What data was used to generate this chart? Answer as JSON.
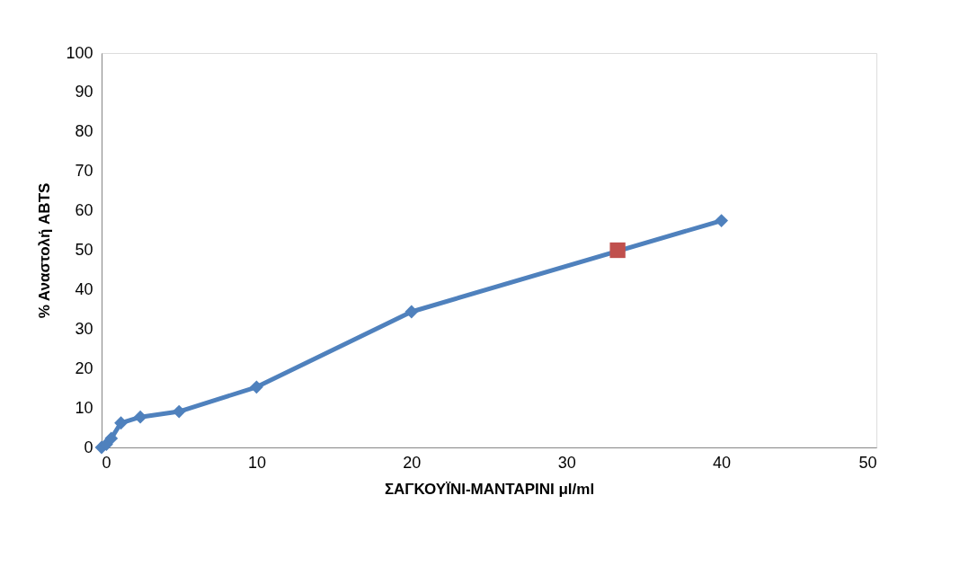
{
  "chart_data": {
    "type": "line",
    "xlabel": "ΣΑΓΚΟΥΪΝΙ-ΜΑΝΤΑΡΙΝΙ μl/ml",
    "ylabel": "% Αναστολή ABTS",
    "series": [
      {
        "color": "#4f81bd",
        "marker": "diamond",
        "x": [
          0,
          0.3125,
          0.625,
          1.25,
          2.5,
          5,
          10,
          20,
          40
        ],
        "values": [
          0,
          0.8,
          2.3,
          6.2,
          7.7,
          9.1,
          15.3,
          34.4,
          57.5
        ]
      },
      {
        "type": "scatter",
        "color": "#c0504d",
        "marker": "square",
        "x": [
          33.3
        ],
        "values": [
          50
        ]
      }
    ],
    "xlim": [
      0,
      50
    ],
    "xticks": [
      0,
      10,
      20,
      30,
      40,
      50
    ],
    "ylim": [
      0,
      100
    ],
    "yticks": [
      0,
      10,
      20,
      30,
      40,
      50,
      60,
      70,
      80,
      90,
      100
    ],
    "grid": false
  }
}
